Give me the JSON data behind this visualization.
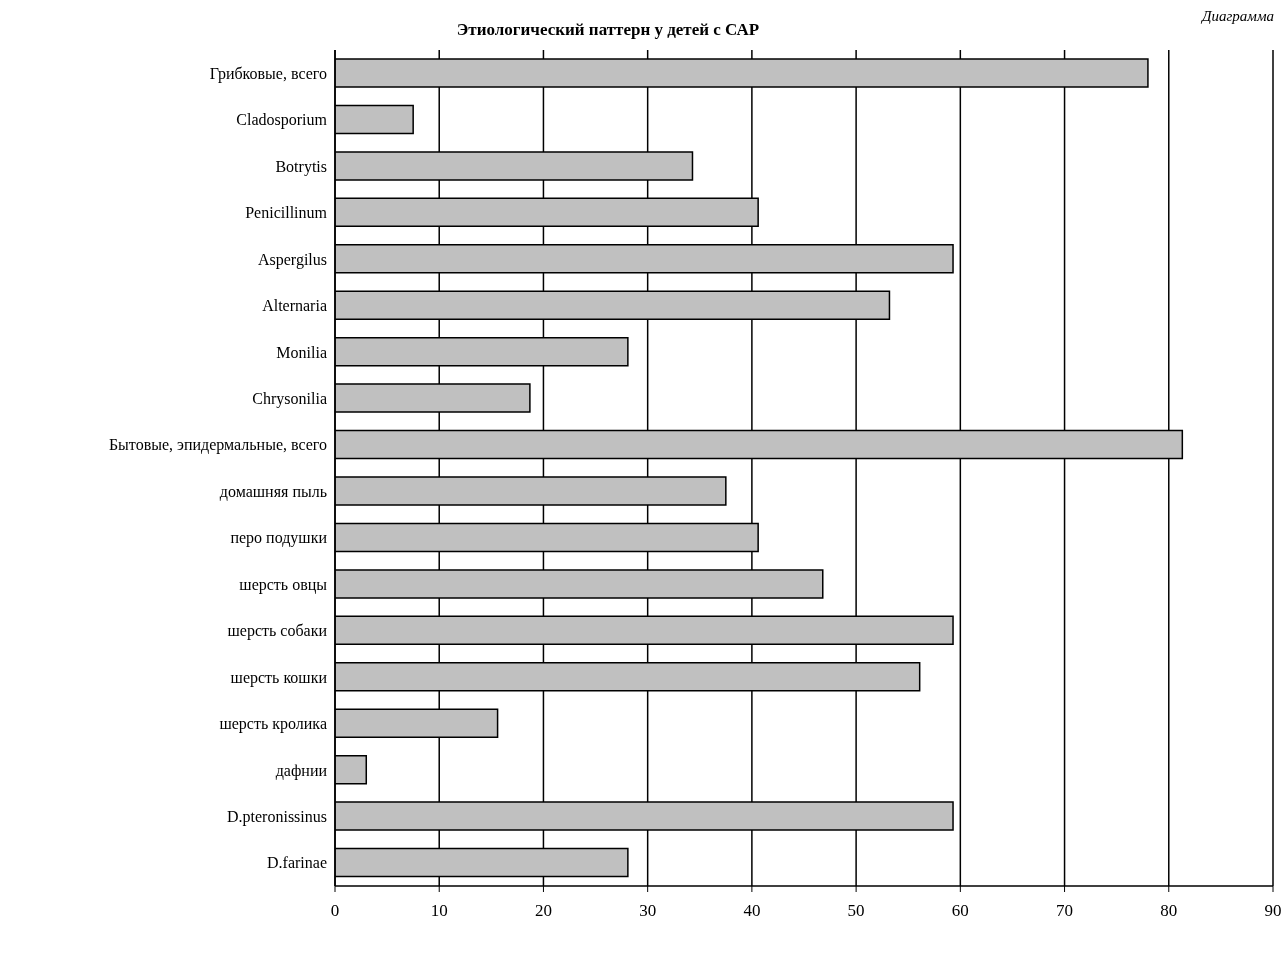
{
  "chart_data": {
    "type": "bar",
    "orientation": "horizontal",
    "title": "Этиологический паттерн у детей с САР",
    "annotations": [
      "Диаграмма"
    ],
    "categories": [
      "Грибковые, всего",
      "Cladosporium",
      "Botrytis",
      "Penicillinum",
      "Aspergilus",
      "Alternaria",
      "Monilia",
      "Chrysonilia",
      "Бытовые, эпидермальные, всего",
      "домашняя пыль",
      "перо подушки",
      "шерсть овцы",
      "шерсть собаки",
      "шерсть кошки",
      "шерсть кролика",
      "дафнии",
      "D.pteronissinus",
      "D.farinae"
    ],
    "values": [
      78,
      7.5,
      34.3,
      40.6,
      59.3,
      53.2,
      28.1,
      18.7,
      81.3,
      37.5,
      40.6,
      46.8,
      59.3,
      56.1,
      15.6,
      3,
      59.3,
      28.1
    ],
    "color": "#c0c0c0",
    "xlim": [
      0,
      90
    ],
    "xticks": [
      0,
      10,
      20,
      30,
      40,
      50,
      60,
      70,
      80,
      90
    ],
    "grid": "x",
    "legend": false
  }
}
